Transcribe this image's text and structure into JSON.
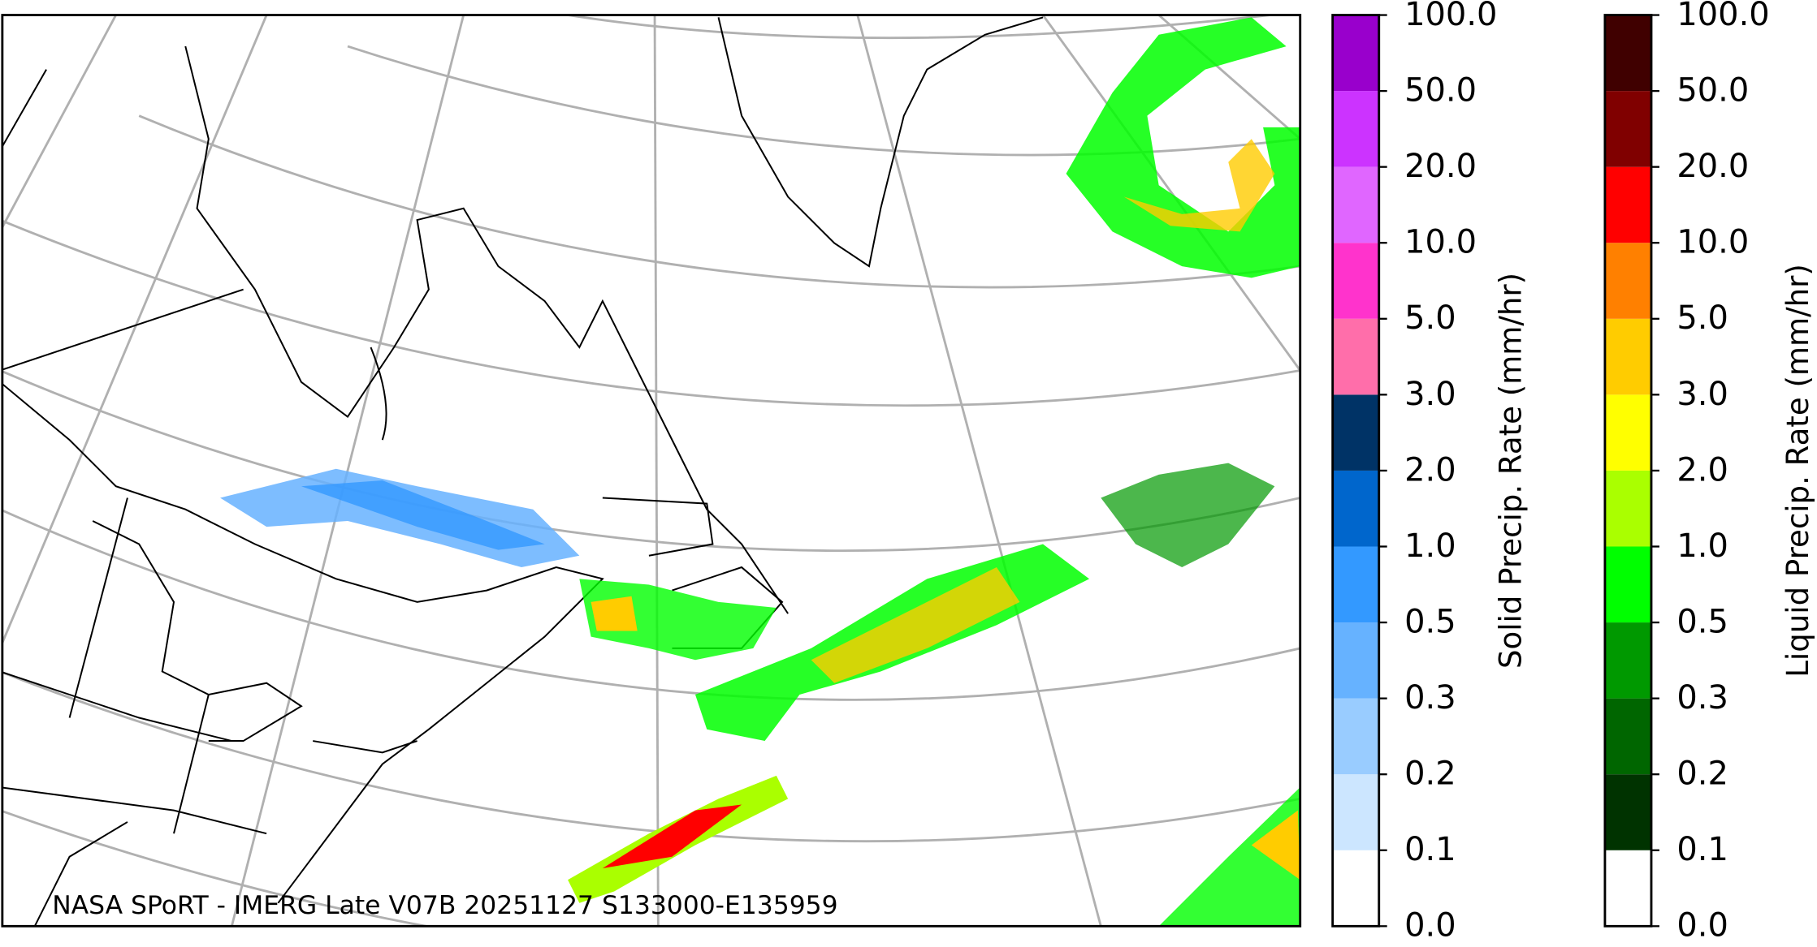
{
  "map": {
    "credit": "NASA SPoRT - IMERG Late V07B 20251127 S133000-E135959"
  },
  "colorbars": [
    {
      "label": "Solid Precip. Rate (mm/hr)",
      "ticks": [
        "0.0",
        "0.1",
        "0.2",
        "0.3",
        "0.5",
        "1.0",
        "2.0",
        "3.0",
        "5.0",
        "10.0",
        "20.0",
        "50.0",
        "100.0"
      ],
      "colors": [
        "#ffffff",
        "#cce6ff",
        "#99ccff",
        "#66b2ff",
        "#3399ff",
        "#0066cc",
        "#003366",
        "#ff6eaa",
        "#ff33cc",
        "#e066ff",
        "#cc33ff",
        "#9900cc"
      ]
    },
    {
      "label": "Liquid Precip. Rate (mm/hr)",
      "ticks": [
        "0.0",
        "0.1",
        "0.2",
        "0.3",
        "0.5",
        "1.0",
        "2.0",
        "3.0",
        "5.0",
        "10.0",
        "20.0",
        "50.0",
        "100.0"
      ],
      "colors": [
        "#ffffff",
        "#003300",
        "#006600",
        "#009900",
        "#00ff00",
        "#aaff00",
        "#ffff00",
        "#ffcc00",
        "#ff8000",
        "#ff0000",
        "#800000",
        "#400000"
      ]
    }
  ]
}
